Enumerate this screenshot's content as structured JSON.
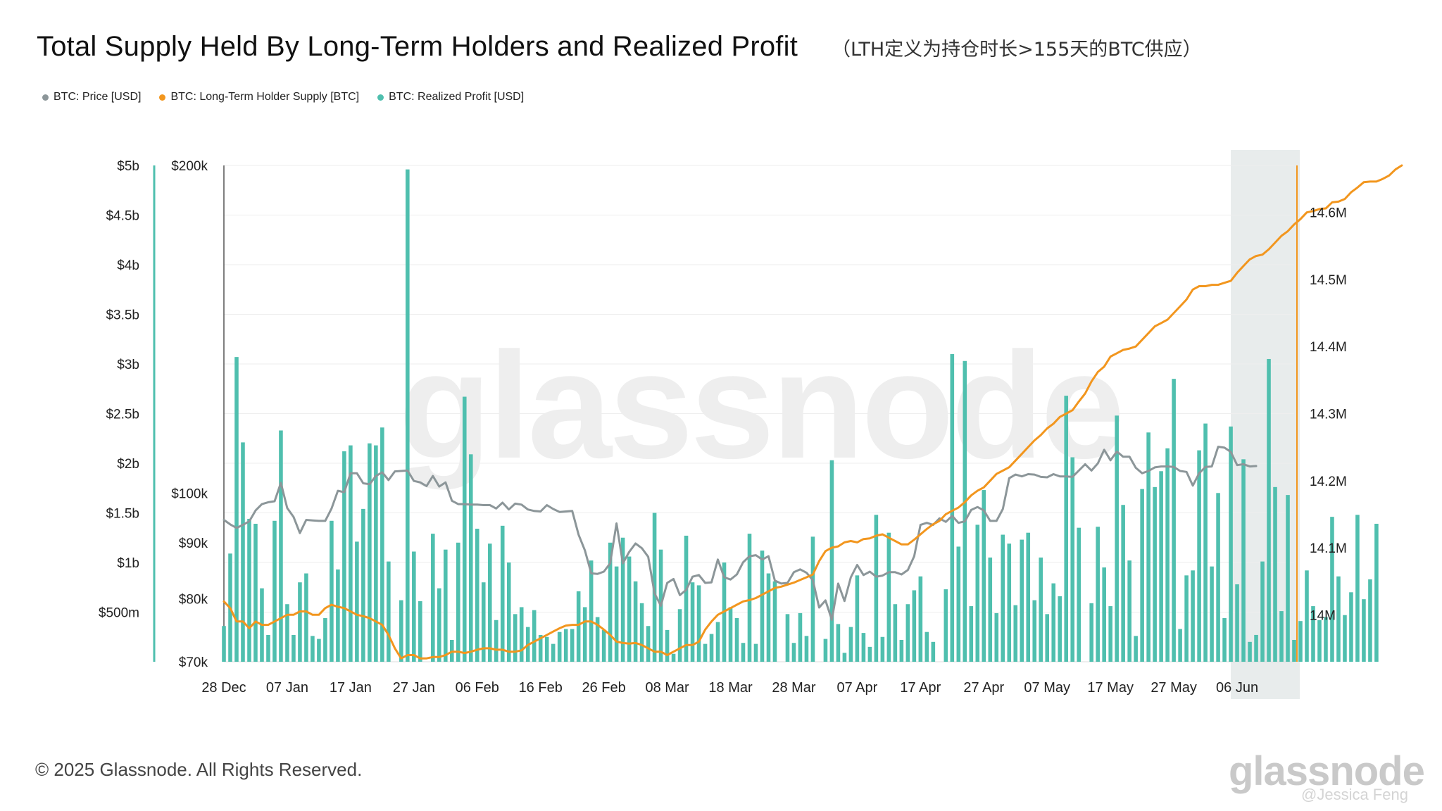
{
  "title": "Total Supply Held By Long-Term Holders and Realized Profit",
  "subtitle": "（LTH定义为持仓时长>155天的BTC供应）",
  "watermark": "glassnode",
  "footer": {
    "copyright": "© 2025 Glassnode. All Rights Reserved.",
    "logo": "glassnode",
    "credit": "@Jessica Feng"
  },
  "colors": {
    "price": "#8c9699",
    "lth_supply": "#f2961e",
    "realized_profit": "#4fbfae",
    "highlight_band": "#e8ecec",
    "grid": "#eeeeee"
  },
  "chart_data": {
    "type": "bar",
    "x_ticks": [
      "28 Dec",
      "07 Jan",
      "17 Jan",
      "27 Jan",
      "06 Feb",
      "16 Feb",
      "26 Feb",
      "08 Mar",
      "18 Mar",
      "28 Mar",
      "07 Apr",
      "17 Apr",
      "27 Apr",
      "07 May",
      "17 May",
      "27 May",
      "06 Jun"
    ],
    "x_range": [
      "2024-12-28",
      "2025-06-15"
    ],
    "highlighted_range": [
      "2025-06-05",
      "2025-06-15"
    ],
    "left_axis_profit": {
      "ticks": [
        "$500m",
        "$1b",
        "$1.5b",
        "$2b",
        "$2.5b",
        "$3b",
        "$3.5b",
        "$4b",
        "$4.5b",
        "$5b"
      ],
      "ylim": [
        0,
        5000000000
      ]
    },
    "left_axis_price": {
      "ticks": [
        "$70k",
        "$80k",
        "$90k",
        "$100k",
        "$200k"
      ],
      "scale": "log",
      "ylim": [
        70000,
        200000
      ]
    },
    "right_axis_supply": {
      "ticks": [
        "14M",
        "14.1M",
        "14.2M",
        "14.3M",
        "14.4M",
        "14.5M",
        "14.6M"
      ],
      "ylim": [
        13930000,
        14670000
      ]
    },
    "series": [
      {
        "name": "BTC: Price [USD]",
        "axis": "left_price",
        "style": "line",
        "values": [
          94500,
          93600,
          92900,
          93500,
          94200,
          96400,
          97700,
          98100,
          98300,
          102200,
          96900,
          95100,
          91900,
          94500,
          94400,
          94300,
          94300,
          96800,
          100500,
          100200,
          104300,
          104300,
          102100,
          101900,
          103700,
          104500,
          102800,
          104700,
          104800,
          104900,
          102600,
          102300,
          101500,
          103700,
          101400,
          102300,
          98400,
          97700,
          97700,
          97600,
          97600,
          97500,
          97500,
          96800,
          98000,
          96600,
          97800,
          97600,
          96600,
          96300,
          96200,
          97500,
          96700,
          96100,
          96200,
          96300,
          91600,
          88600,
          84400,
          84300,
          84700,
          86200,
          93800,
          86200,
          88300,
          89900,
          89000,
          87400,
          80900,
          78800,
          82700,
          83400,
          80600,
          81500,
          83800,
          84100,
          82700,
          82800,
          86900,
          83700,
          83300,
          84200,
          86400,
          87500,
          87700,
          86900,
          87500,
          83100,
          82600,
          82700,
          84600,
          85100,
          84500,
          83200,
          78500,
          79700,
          76500,
          82600,
          79600,
          83700,
          85900,
          84100,
          84700,
          83800,
          84000,
          84600,
          84600,
          84200,
          85000,
          87500,
          93500,
          93900,
          93500,
          94800,
          94100,
          95300,
          93900,
          94200,
          96500,
          97100,
          96400,
          94300,
          94300,
          96700,
          103200,
          104000,
          103600,
          104100,
          104000,
          103500,
          103400,
          104100,
          103600,
          103600,
          103500,
          104900,
          106300,
          104900,
          106500,
          109600,
          107200,
          109200,
          108000,
          108000,
          105500,
          104300,
          104800,
          105600,
          105800,
          105800,
          105700,
          104800,
          104600,
          101600,
          104300,
          105700,
          105800,
          110300,
          110100,
          109100,
          106100,
          106300,
          105800,
          105900
        ]
      },
      {
        "name": "BTC: Long-Term Holder Supply [BTC]",
        "axis": "right_supply",
        "style": "line",
        "values": [
          14020000,
          14010000,
          13990000,
          13990000,
          13980000,
          13990000,
          13985000,
          13985000,
          13990000,
          13995000,
          14000000,
          14000000,
          14005000,
          14005000,
          14000000,
          14000000,
          14010000,
          14015000,
          14012000,
          14010000,
          14005000,
          14000000,
          13998000,
          13995000,
          13990000,
          13985000,
          13970000,
          13950000,
          13935000,
          13940000,
          13940000,
          13935000,
          13935000,
          13937000,
          13937000,
          13940000,
          13945000,
          13945000,
          13943000,
          13945000,
          13948000,
          13950000,
          13950000,
          13948000,
          13948000,
          13945000,
          13945000,
          13947000,
          13955000,
          13960000,
          13965000,
          13970000,
          13975000,
          13980000,
          13984000,
          13985000,
          13985000,
          13990000,
          13990000,
          13985000,
          13978000,
          13970000,
          13960000,
          13958000,
          13957000,
          13958000,
          13955000,
          13950000,
          13945000,
          13945000,
          13940000,
          13945000,
          13950000,
          13955000,
          13955000,
          13960000,
          13978000,
          13990000,
          14000000,
          14005000,
          14010000,
          14015000,
          14020000,
          14022000,
          14025000,
          14030000,
          14035000,
          14040000,
          14042000,
          14045000,
          14048000,
          14052000,
          14056000,
          14060000,
          14080000,
          14095000,
          14100000,
          14102000,
          14108000,
          14110000,
          14108000,
          14113000,
          14114000,
          14118000,
          14120000,
          14115000,
          14110000,
          14105000,
          14105000,
          14112000,
          14120000,
          14128000,
          14135000,
          14140000,
          14150000,
          14155000,
          14160000,
          14168000,
          14178000,
          14185000,
          14190000,
          14200000,
          14210000,
          14215000,
          14220000,
          14230000,
          14240000,
          14250000,
          14260000,
          14268000,
          14278000,
          14285000,
          14295000,
          14300000,
          14305000,
          14318000,
          14330000,
          14348000,
          14362000,
          14370000,
          14385000,
          14390000,
          14395000,
          14397000,
          14400000,
          14410000,
          14420000,
          14430000,
          14435000,
          14440000,
          14450000,
          14460000,
          14470000,
          14485000,
          14490000,
          14490000,
          14492000,
          14492000,
          14495000,
          14498000,
          14510000,
          14520000,
          14530000,
          14535000,
          14537000,
          14545000,
          14555000,
          14565000,
          14572000,
          14582000,
          14590000,
          14600000,
          14602000,
          14605000,
          14606000,
          14615000,
          14616000,
          14620000,
          14630000,
          14637000,
          14645000,
          14646000,
          14646000,
          14650000,
          14655000,
          14664000,
          14670000
        ]
      },
      {
        "name": "BTC: Realized Profit [USD]",
        "axis": "left_profit",
        "style": "bar",
        "values": [
          360000000,
          1090000000,
          3070000000,
          2210000000,
          1440000000,
          1390000000,
          740000000,
          270000000,
          1420000000,
          2330000000,
          580000000,
          270000000,
          800000000,
          890000000,
          260000000,
          230000000,
          440000000,
          1420000000,
          930000000,
          2120000000,
          2180000000,
          1210000000,
          1540000000,
          2200000000,
          2180000000,
          2360000000,
          1010000000,
          0,
          620000000,
          4960000000,
          1110000000,
          610000000,
          0,
          1290000000,
          740000000,
          1130000000,
          220000000,
          1200000000,
          2670000000,
          2090000000,
          1340000000,
          800000000,
          1190000000,
          420000000,
          1370000000,
          1000000000,
          480000000,
          550000000,
          350000000,
          520000000,
          270000000,
          250000000,
          180000000,
          300000000,
          330000000,
          330000000,
          710000000,
          550000000,
          1020000000,
          450000000,
          320000000,
          1200000000,
          960000000,
          1250000000,
          1060000000,
          810000000,
          590000000,
          360000000,
          1500000000,
          1130000000,
          320000000,
          80000000,
          530000000,
          1270000000,
          800000000,
          770000000,
          180000000,
          280000000,
          400000000,
          1000000000,
          550000000,
          440000000,
          190000000,
          1290000000,
          180000000,
          1120000000,
          890000000,
          810000000,
          0,
          480000000,
          190000000,
          490000000,
          260000000,
          1260000000,
          0,
          230000000,
          2030000000,
          380000000,
          90000000,
          350000000,
          870000000,
          290000000,
          150000000,
          1480000000,
          250000000,
          1300000000,
          580000000,
          220000000,
          580000000,
          720000000,
          860000000,
          300000000,
          200000000,
          0,
          730000000,
          3100000000,
          1160000000,
          3030000000,
          560000000,
          1380000000,
          1730000000,
          1050000000,
          490000000,
          1280000000,
          1190000000,
          570000000,
          1230000000,
          1300000000,
          620000000,
          1050000000,
          480000000,
          790000000,
          660000000,
          2680000000,
          2060000000,
          1350000000,
          0,
          590000000,
          1360000000,
          950000000,
          560000000,
          2480000000,
          1580000000,
          1020000000,
          260000000,
          1740000000,
          2310000000,
          1760000000,
          1920000000,
          2150000000,
          2850000000,
          330000000,
          870000000,
          920000000,
          2130000000,
          2400000000,
          960000000,
          1700000000,
          440000000,
          2370000000,
          780000000,
          2040000000,
          200000000,
          270000000,
          1010000000,
          3050000000,
          1760000000,
          510000000,
          1680000000,
          220000000,
          410000000,
          920000000,
          560000000,
          420000000,
          450000000,
          1460000000,
          860000000,
          470000000,
          700000000,
          1480000000,
          630000000,
          830000000,
          1390000000
        ]
      }
    ]
  }
}
